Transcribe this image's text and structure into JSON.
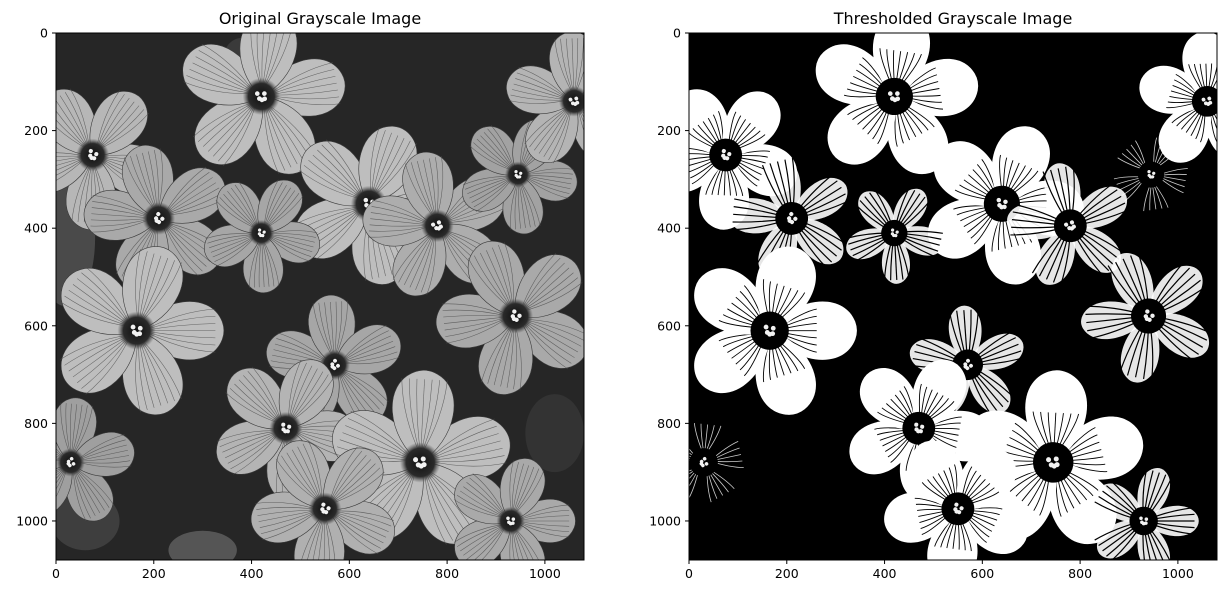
{
  "chart_data": [
    {
      "type": "image",
      "title": "Original Grayscale Image",
      "xlabel": "",
      "ylabel": "",
      "xlim": [
        0,
        1080
      ],
      "ylim": [
        1080,
        0
      ],
      "x_ticks": [
        0,
        200,
        400,
        600,
        800,
        1000
      ],
      "y_ticks": [
        0,
        200,
        400,
        600,
        800,
        1000
      ],
      "colormap": "gray",
      "image_content": "grayscale photo of oxalis flowers (5-petaled, striped petals, dark centers, stamens)"
    },
    {
      "type": "image",
      "title": "Thresholded Grayscale Image",
      "xlabel": "",
      "ylabel": "",
      "xlim": [
        0,
        1080
      ],
      "ylim": [
        1080,
        0
      ],
      "x_ticks": [
        0,
        200,
        400,
        600,
        800,
        1000
      ],
      "y_ticks": [
        0,
        200,
        400,
        600,
        800,
        1000
      ],
      "colormap": "binary (black/white)",
      "image_content": "binary thresholded version of the flower photo: white petals on black background"
    }
  ],
  "colors": {
    "background": "#ffffff",
    "axis": "#000000",
    "original_bg": "#262626",
    "petal_light": "#b7b7b7",
    "petal_mid": "#8e8e8e",
    "petal_dark": "#5a5a5a",
    "center_dark": "#181818",
    "thresh_black": "#000000",
    "thresh_white": "#ffffff"
  }
}
